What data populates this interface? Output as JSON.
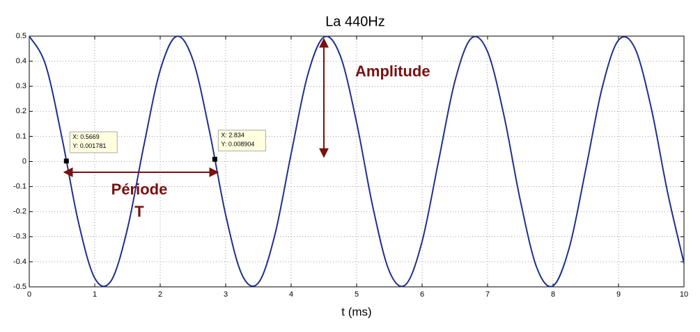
{
  "chart_data": {
    "type": "line",
    "title": "La 440Hz",
    "x_label": "t (ms)",
    "x": [
      0,
      0.25,
      0.5,
      0.75,
      1,
      1.25,
      1.5,
      1.75,
      2,
      2.25,
      2.5,
      2.75,
      3,
      3.25,
      3.5,
      3.75,
      4,
      4.25,
      4.5,
      4.75,
      5,
      5.25,
      5.5,
      5.75,
      6,
      6.25,
      6.5,
      6.75,
      7,
      7.25,
      7.5,
      7.75,
      8,
      8.25,
      8.5,
      8.75,
      9,
      9.25,
      9.5,
      9.75,
      10
    ],
    "values": [
      0.5,
      0.385,
      0.094,
      -0.241,
      -0.465,
      -0.476,
      -0.268,
      0.063,
      0.364,
      0.499,
      0.405,
      0.124,
      -0.213,
      -0.452,
      -0.484,
      -0.294,
      0.031,
      0.342,
      0.496,
      0.422,
      0.155,
      -0.184,
      -0.438,
      -0.491,
      -0.319,
      0,
      0.319,
      0.491,
      0.438,
      0.184,
      -0.155,
      -0.422,
      -0.496,
      -0.342,
      -0.031,
      0.294,
      0.484,
      0.452,
      0.213,
      -0.124,
      -0.405
    ],
    "color": "#1f2f8f",
    "xlim": [
      0,
      10
    ],
    "xticks": [
      0,
      1,
      2,
      3,
      4,
      5,
      6,
      7,
      8,
      9,
      10
    ],
    "ylim": [
      -0.5,
      0.5
    ],
    "yticks": [
      -0.5,
      -0.4,
      -0.3,
      -0.2,
      -0.1,
      0,
      0.1,
      0.2,
      0.3,
      0.4,
      0.5
    ],
    "grid": true,
    "datatips": [
      {
        "x": 0.5669,
        "y": 0.001781,
        "label_x": "X: 0.5669",
        "label_y": "Y: 0.001781"
      },
      {
        "x": 2.834,
        "y": 0.008904,
        "label_x": "X: 2.834",
        "label_y": "Y: 0.008904"
      }
    ],
    "annotations": {
      "amplitude": "Amplitude",
      "period": "Période",
      "period_symbol": "T"
    }
  }
}
